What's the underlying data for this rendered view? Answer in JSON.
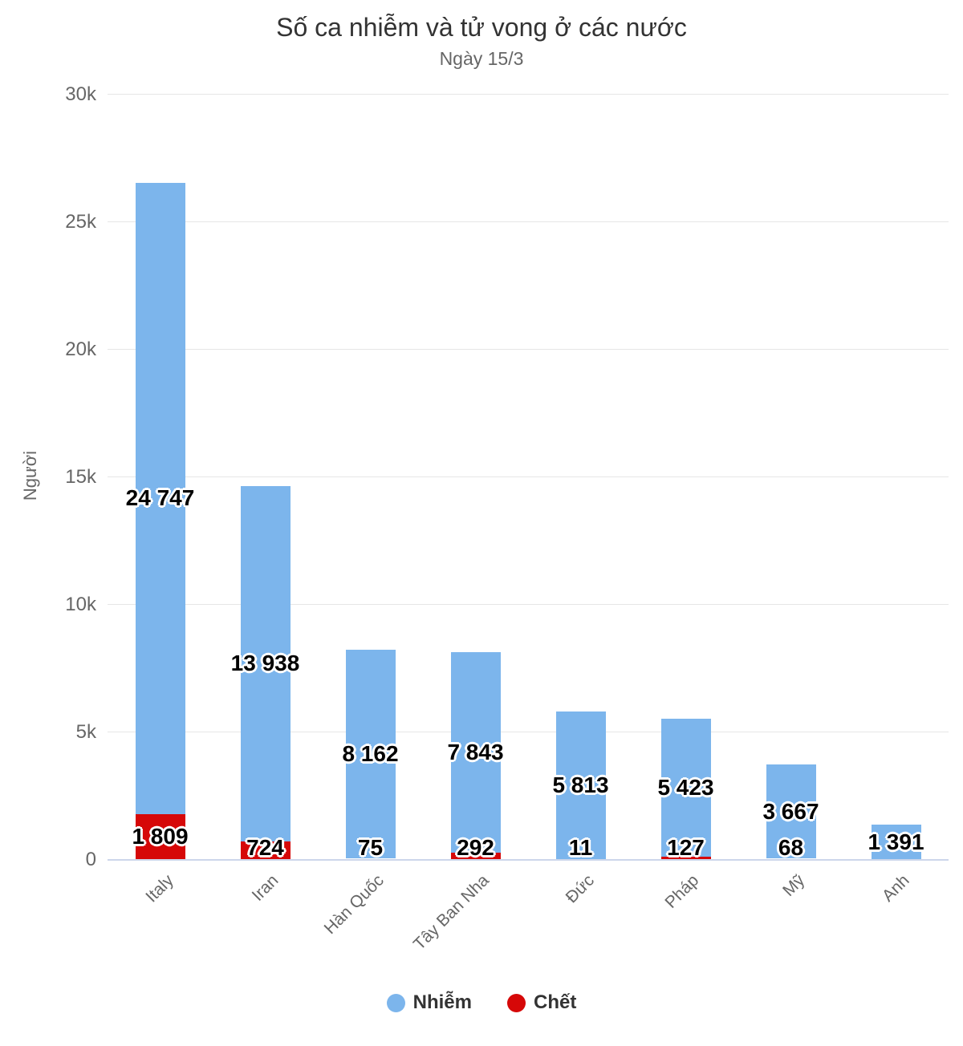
{
  "header": {
    "title": "Số ca nhiễm và tử vong ở các nước",
    "subtitle": "Ngày 15/3"
  },
  "chart_data": {
    "type": "bar",
    "stacked": true,
    "title": "Số ca nhiễm và tử vong ở các nước",
    "subtitle": "Ngày 15/3",
    "xlabel": "",
    "ylabel": "Người",
    "ylim": [
      0,
      30000
    ],
    "grid": true,
    "legend_position": "bottom-center",
    "categories": [
      "Italy",
      "Iran",
      "Hàn Quốc",
      "Tây Ban Nha",
      "Đức",
      "Pháp",
      "Mỹ",
      "Anh"
    ],
    "series": [
      {
        "name": "Nhiễm",
        "color": "#7cb5ec",
        "values": [
          24747,
          13938,
          8162,
          7843,
          5813,
          5423,
          3667,
          1391
        ],
        "labels": [
          "24 747",
          "13 938",
          "8 162",
          "7 843",
          "5 813",
          "5 423",
          "3 667",
          "1 391"
        ]
      },
      {
        "name": "Chết",
        "color": "#d60808",
        "values": [
          1809,
          724,
          75,
          292,
          11,
          127,
          68,
          null
        ],
        "labels": [
          "1 809",
          "724",
          "75",
          "292",
          "11",
          "127",
          "68",
          null
        ]
      }
    ],
    "y_ticks": [
      {
        "value": 0,
        "label": "0"
      },
      {
        "value": 5000,
        "label": "5k"
      },
      {
        "value": 10000,
        "label": "10k"
      },
      {
        "value": 15000,
        "label": "15k"
      },
      {
        "value": 20000,
        "label": "20k"
      },
      {
        "value": 25000,
        "label": "25k"
      },
      {
        "value": 30000,
        "label": "30k"
      }
    ]
  },
  "colors": {
    "infected": "#7cb5ec",
    "dead": "#d60808",
    "title_text": "#333333",
    "muted_text": "#666666",
    "gridline": "#e6e6e6",
    "axis_line": "#ccd6eb"
  }
}
